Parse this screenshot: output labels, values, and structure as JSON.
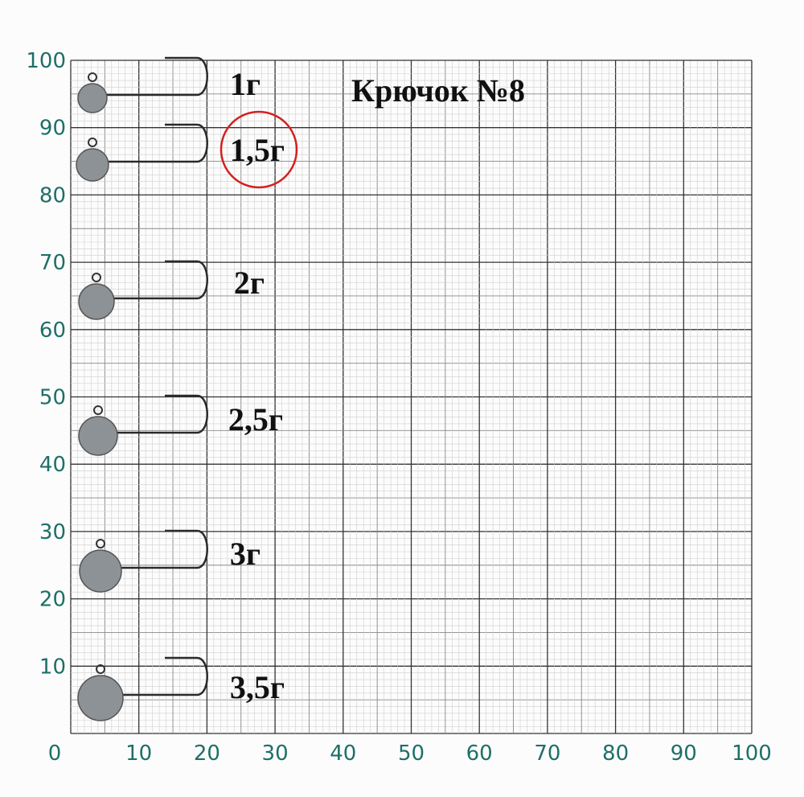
{
  "title": "Крючок №8",
  "x_labels": [
    0,
    10,
    20,
    30,
    40,
    50,
    60,
    70,
    80,
    90,
    100
  ],
  "y_labels": [
    10,
    20,
    30,
    40,
    50,
    60,
    70,
    80,
    90,
    100
  ],
  "jigs": [
    "1г",
    "1,5г",
    "2г",
    "2,5г",
    "3г",
    "3,5г"
  ]
}
